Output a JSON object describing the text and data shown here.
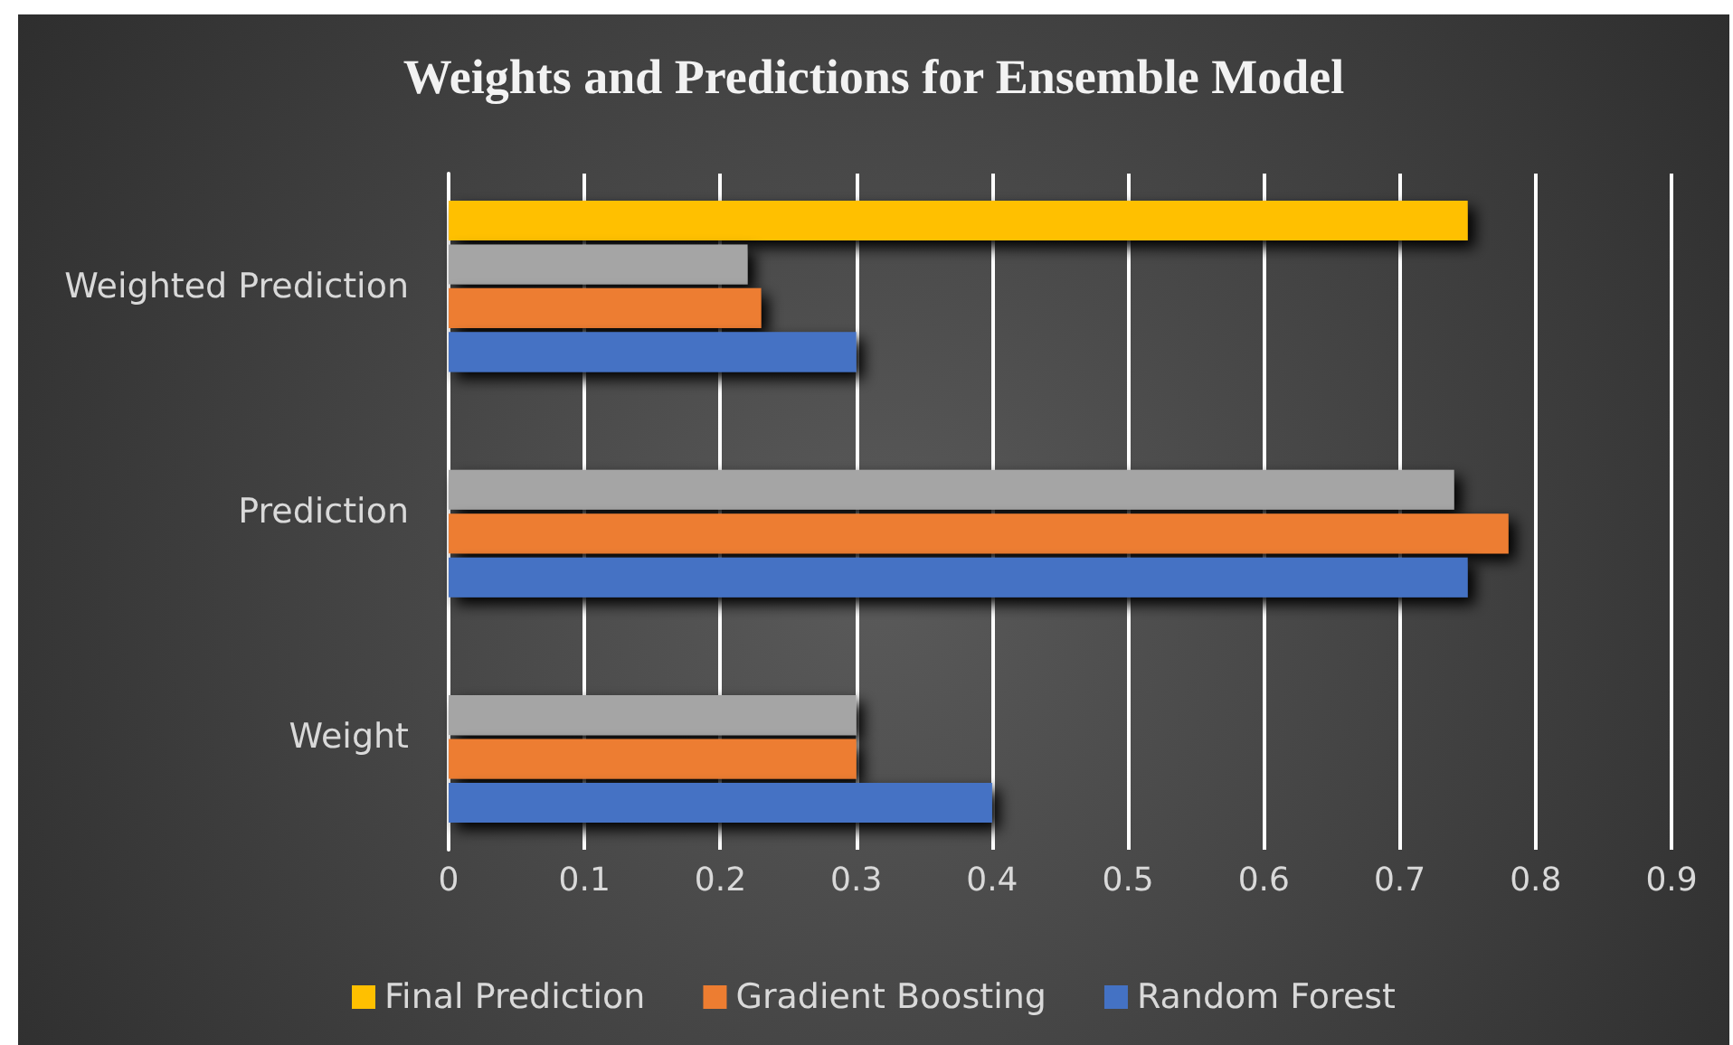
{
  "chart_data": {
    "type": "bar",
    "orientation": "horizontal",
    "title": "Weights and Predictions for Ensemble Model",
    "categories": [
      "Weighted Prediction",
      "Prediction",
      "Weight"
    ],
    "series": [
      {
        "name": "Final Prediction",
        "color": "#ffc000",
        "values": [
          0.75,
          null,
          null
        ]
      },
      {
        "color": "#a5a5a5",
        "values": [
          0.22,
          0.74,
          0.3
        ]
      },
      {
        "name": "Gradient Boosting",
        "color": "#ed7d31",
        "values": [
          0.23,
          0.78,
          0.3
        ]
      },
      {
        "name": "Random Forest",
        "color": "#4472c4",
        "values": [
          0.3,
          0.75,
          0.4
        ]
      }
    ],
    "xlim": [
      0,
      0.9
    ],
    "xticks": [
      0,
      0.1,
      0.2,
      0.3,
      0.4,
      0.5,
      0.6,
      0.7,
      0.8,
      0.9
    ],
    "grid": "x",
    "legend": "bottom"
  }
}
